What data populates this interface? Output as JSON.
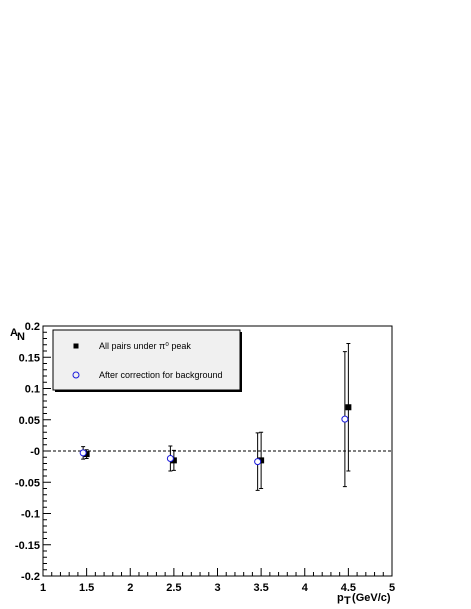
{
  "chart_data": {
    "type": "scatter",
    "title": "",
    "xlabel": "p",
    "xlabel_sub": "T",
    "xlabel_unit": " (GeV/c)",
    "ylabel": "A",
    "ylabel_sub": "N",
    "xlim": [
      1,
      5
    ],
    "ylim": [
      -0.2,
      0.2
    ],
    "x_ticks": [
      1,
      1.5,
      2,
      2.5,
      3,
      3.5,
      4,
      4.5,
      5
    ],
    "x_tick_labels": [
      "1",
      "1.5",
      "2",
      "2.5",
      "3",
      "3.5",
      "4",
      "4.5",
      "5"
    ],
    "y_ticks": [
      -0.2,
      -0.15,
      -0.1,
      -0.05,
      0,
      0.05,
      0.1,
      0.15,
      0.2
    ],
    "y_tick_labels": [
      "-0.2",
      "-0.15",
      "-0.1",
      "-0.05",
      "-0",
      "0.05",
      "0.1",
      "0.15",
      "0.2"
    ],
    "reference_line": 0,
    "grid": false,
    "legend_position": "top-left",
    "legend_entries": [
      {
        "label": "All pairs under π⁰ peak",
        "marker": "filled-square"
      },
      {
        "label": "After correction for background",
        "marker": "open-circle"
      }
    ],
    "series": [
      {
        "marker": "filled-square",
        "color": "#000000",
        "points": [
          {
            "x": 1.5,
            "y": -0.005,
            "err": 0.007
          },
          {
            "x": 2.5,
            "y": -0.015,
            "err": 0.016
          },
          {
            "x": 3.5,
            "y": -0.015,
            "err": 0.045
          },
          {
            "x": 4.5,
            "y": 0.07,
            "err": 0.102
          }
        ]
      },
      {
        "marker": "open-circle",
        "color": "#1a1adc",
        "points": [
          {
            "x": 1.46,
            "y": -0.003,
            "err": 0.01
          },
          {
            "x": 2.46,
            "y": -0.012,
            "err": 0.02
          },
          {
            "x": 3.46,
            "y": -0.017,
            "err": 0.046
          },
          {
            "x": 4.46,
            "y": 0.051,
            "err": 0.108
          }
        ]
      }
    ]
  }
}
